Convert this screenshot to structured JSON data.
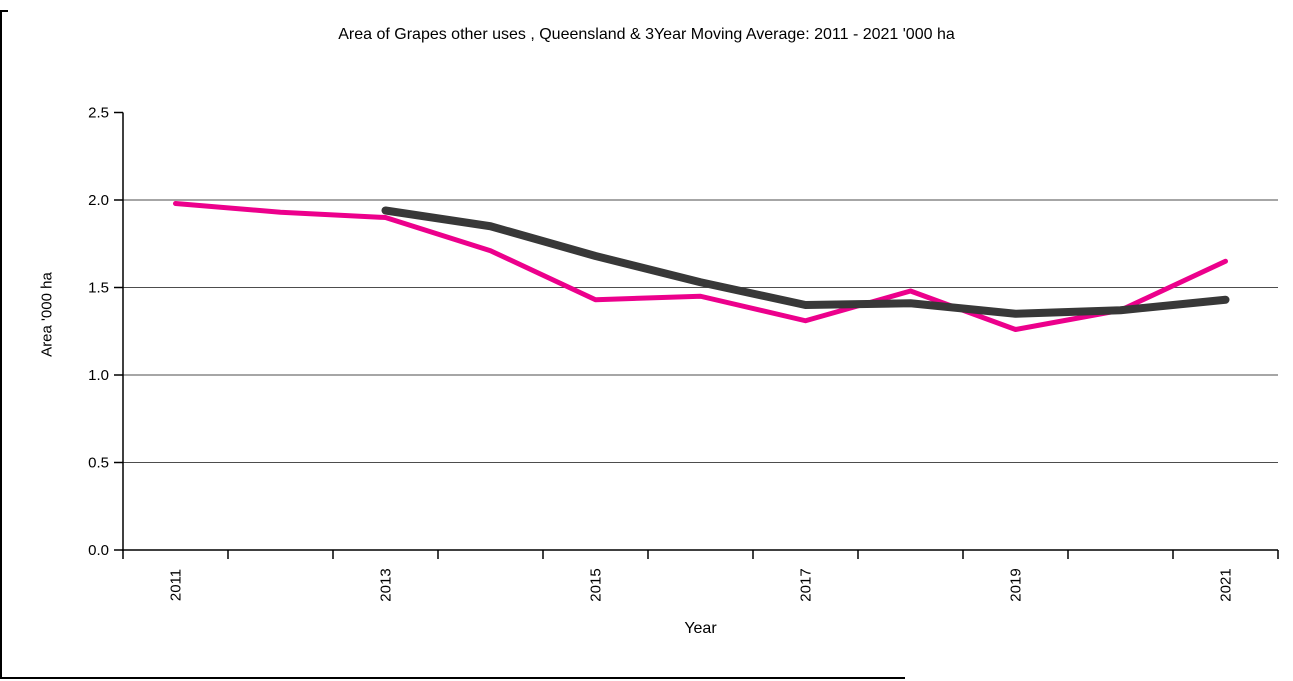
{
  "window": {
    "background": "#ffffff",
    "border_color": "#000000"
  },
  "chart_data": {
    "type": "line",
    "title": "Area of Grapes other uses , Queensland & 3Year Moving Average: 2011 - 2021 '000 ha",
    "xlabel": "Year",
    "ylabel": "Area '000 ha",
    "categories": [
      2011,
      2012,
      2013,
      2014,
      2015,
      2016,
      2017,
      2018,
      2019,
      2020,
      2021
    ],
    "x_tick_labels": [
      "2011",
      "2013",
      "2015",
      "2017",
      "2019",
      "2021"
    ],
    "y_ticks": [
      0,
      0.5,
      1,
      1.5,
      2,
      2.5
    ],
    "y_tick_labels": [
      "0.0",
      "0.5",
      "1.0",
      "1.5",
      "2.0",
      "2.5"
    ],
    "grid_values": [
      0.5,
      1,
      1.5,
      2
    ],
    "ylim": [
      0,
      2.5
    ],
    "legend": "none",
    "axis_color": "#000000",
    "gridline_color": "#4d4d4d",
    "series": [
      {
        "name": "Queensland",
        "color": "#EC008C",
        "stroke_width": 5,
        "x": [
          2011,
          2012,
          2013,
          2014,
          2015,
          2016,
          2017,
          2018,
          2019,
          2020,
          2021
        ],
        "values": [
          1.98,
          1.93,
          1.9,
          1.71,
          1.43,
          1.45,
          1.31,
          1.48,
          1.26,
          1.37,
          1.65
        ]
      },
      {
        "name": "3Year Moving Average",
        "color": "#383838",
        "stroke_width": 8,
        "x": [
          2013,
          2014,
          2015,
          2016,
          2017,
          2018,
          2019,
          2020,
          2021
        ],
        "values": [
          1.94,
          1.85,
          1.68,
          1.53,
          1.4,
          1.41,
          1.35,
          1.37,
          1.43
        ]
      }
    ]
  }
}
